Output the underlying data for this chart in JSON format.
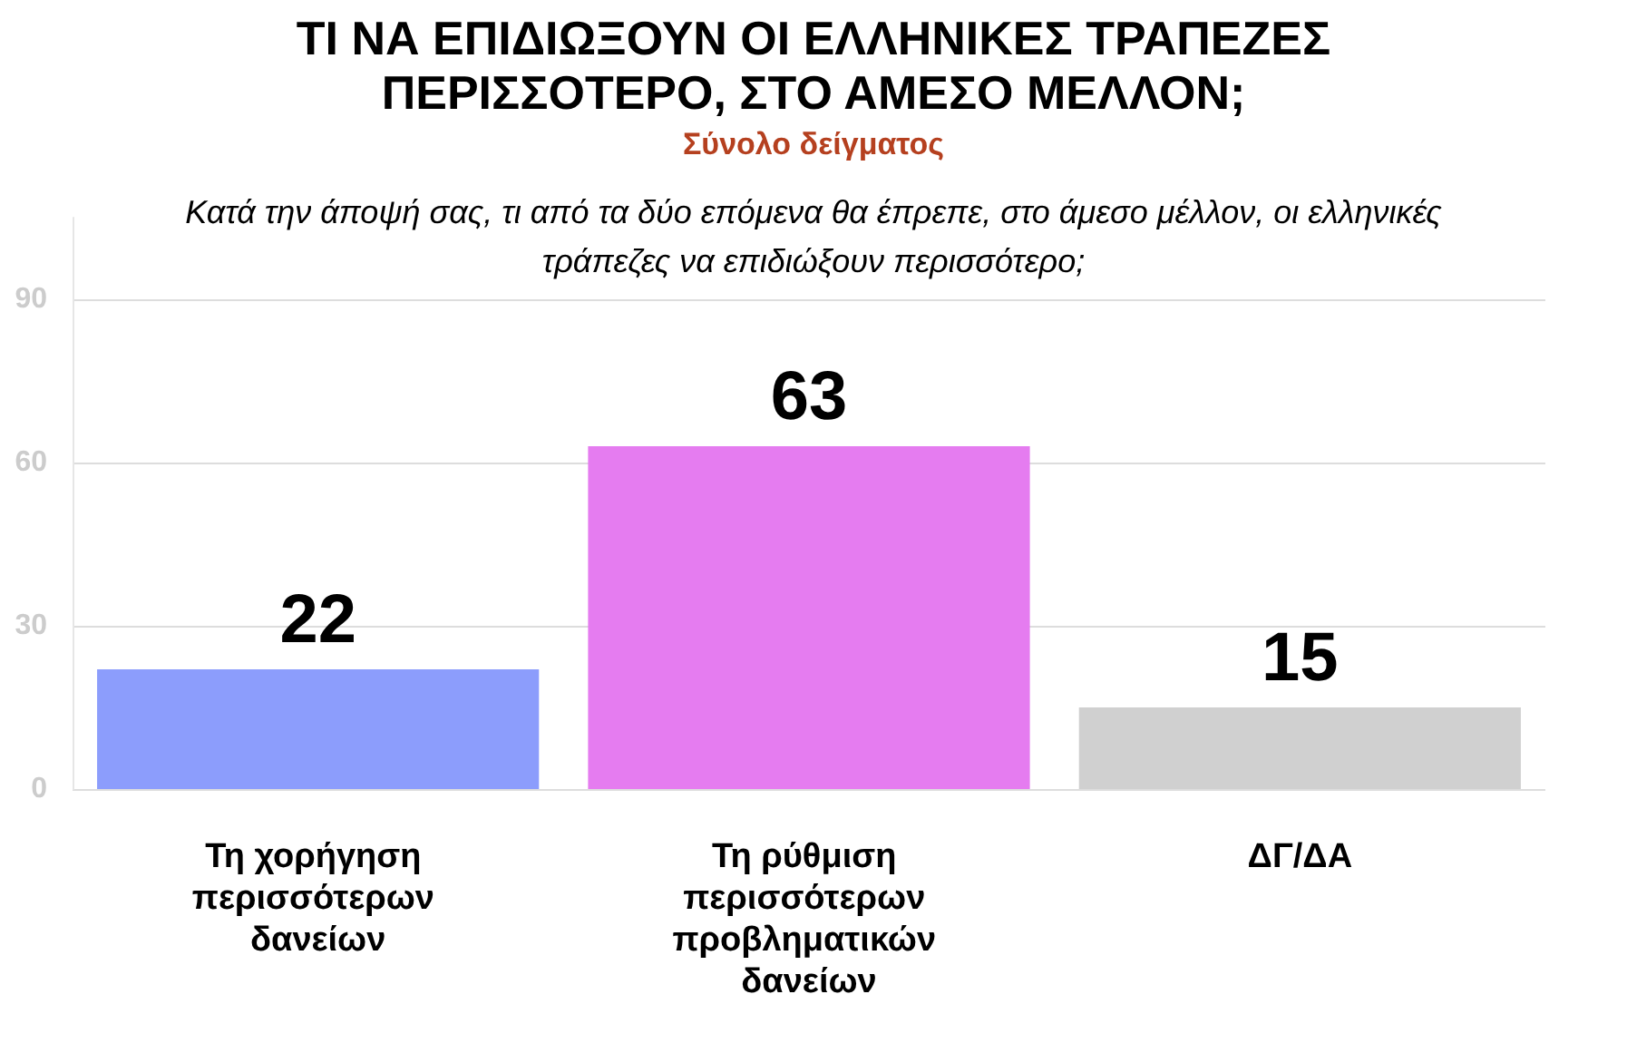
{
  "chart_data": {
    "type": "bar",
    "title": "ΤΙ ΝΑ ΕΠΙΔΙΩΞΟΥΝ ΟΙ ΕΛΛΗΝΙΚΕΣ ΤΡΑΠΕΖΕΣ ΠΕΡΙΣΣΟΤΕΡΟ, ΣΤΟ ΑΜΕΣΟ ΜΕΛΛΟΝ;",
    "subtitle": "Σύνολο δείγματος",
    "annotations": [
      "Κατά την άποψή σας, τι από τα δύο επόμενα θα έπρεπε, στο άμεσο μέλλον, οι ελληνικές τράπεζες να επιδιώξουν περισσότερο;"
    ],
    "categories": [
      "Τη χορήγηση περισσότερων δανείων",
      "Τη ρύθμιση περισσότερων προβληματικών δανείων",
      "ΔΓ/ΔΑ"
    ],
    "values": [
      22,
      63,
      15
    ],
    "colors": [
      "#8c9dfc",
      "#e57cf0",
      "#d0d0d0"
    ],
    "ylim": [
      0,
      105
    ],
    "yticks": [
      0,
      30,
      60,
      90
    ],
    "grid": "y",
    "data_labels": true
  }
}
